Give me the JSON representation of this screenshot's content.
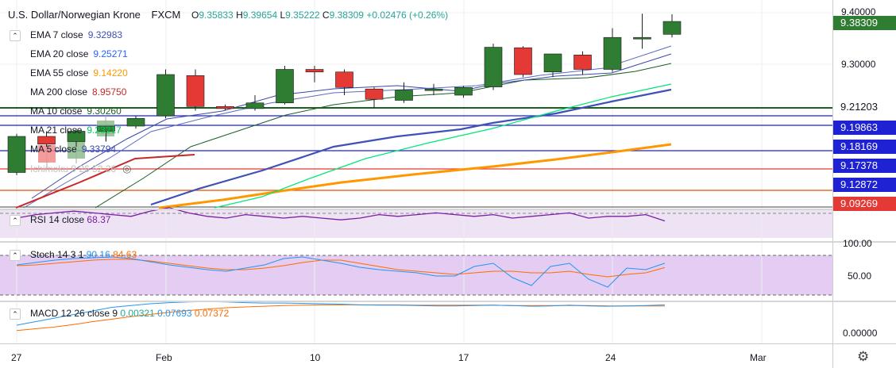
{
  "header": {
    "symbol": "U.S. Dollar/Norwegian Krone",
    "exchange": "FXCM",
    "ohlc": {
      "o_label": "O",
      "o": "9.35833",
      "h_label": "H",
      "h": "9.39654",
      "l_label": "L",
      "l": "9.35222",
      "c_label": "C",
      "c": "9.38309",
      "change": "+0.02476",
      "change_pct": "(+0.26%)"
    }
  },
  "legend": [
    {
      "label": "EMA 7 close",
      "value": "9.32983",
      "color": "#3f51b5"
    },
    {
      "label": "EMA 20 close",
      "value": "9.25271",
      "color": "#2962ff"
    },
    {
      "label": "EMA 55 close",
      "value": "9.14220",
      "color": "#ff9800"
    },
    {
      "label": "MA 200 close",
      "value": "8.95750",
      "color": "#c62828"
    },
    {
      "label": "MA 10 close",
      "value": "9.30260",
      "color": "#1b5e20"
    },
    {
      "label": "MA 21 close",
      "value": "9.23217",
      "color": "#00e676"
    },
    {
      "label": "MA 5 close",
      "value": "9.33794",
      "color": "#3949ab"
    },
    {
      "label": "Ichimoku 9 26 52 26",
      "value": "",
      "color": "#b0b0b0"
    }
  ],
  "price_axis": {
    "labels": [
      "9.40000",
      "9.30000"
    ],
    "tags": [
      {
        "value": "9.38309",
        "bg": "#2e7d32",
        "fg": "#ffffff"
      },
      {
        "value": "9.21203",
        "bg": "#ffffff",
        "fg": "#131722"
      },
      {
        "value": "9.19863",
        "bg": "#1e22d2",
        "fg": "#ffffff"
      },
      {
        "value": "9.18169",
        "bg": "#1e22d2",
        "fg": "#ffffff"
      },
      {
        "value": "9.17378",
        "bg": "#1e22d2",
        "fg": "#ffffff"
      },
      {
        "value": "9.12872",
        "bg": "#1e22d2",
        "fg": "#ffffff"
      },
      {
        "value": "9.09269",
        "bg": "#e53935",
        "fg": "#ffffff"
      }
    ]
  },
  "rsi": {
    "label": "RSI 14 close",
    "value": "68.37",
    "color": "#7b1fa2",
    "values": [
      70,
      72,
      73,
      74,
      73,
      72,
      71,
      74,
      76,
      73,
      71,
      70,
      72,
      71,
      70,
      71,
      70,
      69,
      70,
      72,
      71,
      72,
      73,
      72,
      71,
      72,
      70,
      71,
      72,
      73,
      70,
      71,
      71,
      72,
      68.37
    ]
  },
  "stoch": {
    "label": "Stoch 14 3 1",
    "k_value": "90.16",
    "d_value": "84.63",
    "k_color": "#2196f3",
    "d_color": "#ff6d00",
    "axis_labels": [
      "100.00",
      "50.00"
    ],
    "k": [
      88,
      91,
      94,
      96,
      97,
      98,
      96,
      92,
      88,
      85,
      82,
      80,
      84,
      88,
      96,
      98,
      94,
      90,
      85,
      82,
      80,
      78,
      74,
      74,
      86,
      90,
      72,
      62,
      86,
      90,
      70,
      60,
      84,
      82,
      90.16
    ],
    "d": [
      87,
      88,
      90,
      92,
      94,
      95,
      95,
      93,
      90,
      87,
      84,
      82,
      82,
      84,
      87,
      91,
      94,
      94,
      90,
      86,
      82,
      80,
      78,
      76,
      78,
      80,
      80,
      78,
      78,
      80,
      76,
      73,
      76,
      78,
      84.63
    ]
  },
  "macd": {
    "label": "MACD 12 26 close 9",
    "hist_value": "0.00321",
    "macd_value": "0.07693",
    "signal_value": "0.07372",
    "hist_color": "#26a69a",
    "macd_color": "#2196f3",
    "signal_color": "#ff6d00",
    "axis_labels": [
      "0.00000"
    ],
    "macd": [
      0.02,
      0.03,
      0.04,
      0.05,
      0.06,
      0.07,
      0.075,
      0.08,
      0.083,
      0.085,
      0.086,
      0.085,
      0.083,
      0.082,
      0.082,
      0.081,
      0.08,
      0.079,
      0.077,
      0.076,
      0.076,
      0.075,
      0.074,
      0.074,
      0.075,
      0.076,
      0.075,
      0.073,
      0.074,
      0.076,
      0.074,
      0.073,
      0.074,
      0.075,
      0.07693
    ],
    "signal": [
      0.005,
      0.01,
      0.015,
      0.022,
      0.03,
      0.037,
      0.044,
      0.05,
      0.056,
      0.061,
      0.065,
      0.069,
      0.071,
      0.073,
      0.075,
      0.076,
      0.077,
      0.077,
      0.077,
      0.077,
      0.077,
      0.076,
      0.076,
      0.076,
      0.076,
      0.076,
      0.075,
      0.075,
      0.075,
      0.075,
      0.075,
      0.074,
      0.074,
      0.074,
      0.07372
    ]
  },
  "time_axis": {
    "labels": [
      "27",
      "Feb",
      "10",
      "17",
      "24",
      "Mar"
    ]
  },
  "chart_data": {
    "type": "candlestick",
    "y_axis_ticks": [
      9.3,
      9.4
    ],
    "candles": [
      {
        "o": 9.09,
        "h": 9.165,
        "l": 9.085,
        "c": 9.16
      },
      {
        "o": 9.16,
        "h": 9.17,
        "l": 9.14,
        "c": 9.145
      },
      {
        "o": 9.15,
        "h": 9.175,
        "l": 9.14,
        "c": 9.17
      },
      {
        "o": 9.17,
        "h": 9.18,
        "l": 9.15,
        "c": 9.18
      },
      {
        "o": 9.18,
        "h": 9.2,
        "l": 9.175,
        "c": 9.195
      },
      {
        "o": 9.2,
        "h": 9.29,
        "l": 9.195,
        "c": 9.28
      },
      {
        "o": 9.278,
        "h": 9.29,
        "l": 9.21,
        "c": 9.218
      },
      {
        "o": 9.218,
        "h": 9.222,
        "l": 9.21,
        "c": 9.214
      },
      {
        "o": 9.214,
        "h": 9.24,
        "l": 9.21,
        "c": 9.225
      },
      {
        "o": 9.225,
        "h": 9.297,
        "l": 9.222,
        "c": 9.29
      },
      {
        "o": 9.29,
        "h": 9.297,
        "l": 9.265,
        "c": 9.285
      },
      {
        "o": 9.285,
        "h": 9.29,
        "l": 9.24,
        "c": 9.255
      },
      {
        "o": 9.252,
        "h": 9.255,
        "l": 9.215,
        "c": 9.232
      },
      {
        "o": 9.23,
        "h": 9.265,
        "l": 9.225,
        "c": 9.25
      },
      {
        "o": 9.25,
        "h": 9.262,
        "l": 9.24,
        "c": 9.252
      },
      {
        "o": 9.24,
        "h": 9.258,
        "l": 9.235,
        "c": 9.255
      },
      {
        "o": 9.256,
        "h": 9.34,
        "l": 9.25,
        "c": 9.333
      },
      {
        "o": 9.332,
        "h": 9.335,
        "l": 9.275,
        "c": 9.28
      },
      {
        "o": 9.285,
        "h": 9.32,
        "l": 9.275,
        "c": 9.32
      },
      {
        "o": 9.318,
        "h": 9.325,
        "l": 9.28,
        "c": 9.29
      },
      {
        "o": 9.29,
        "h": 9.37,
        "l": 9.285,
        "c": 9.352
      },
      {
        "o": 9.352,
        "h": 9.398,
        "l": 9.33,
        "c": 9.352
      },
      {
        "o": 9.358,
        "h": 9.397,
        "l": 9.352,
        "c": 9.383
      }
    ],
    "horizontal_levels": [
      9.21203,
      9.19863,
      9.18169,
      9.17378,
      9.12872,
      9.09269
    ]
  }
}
